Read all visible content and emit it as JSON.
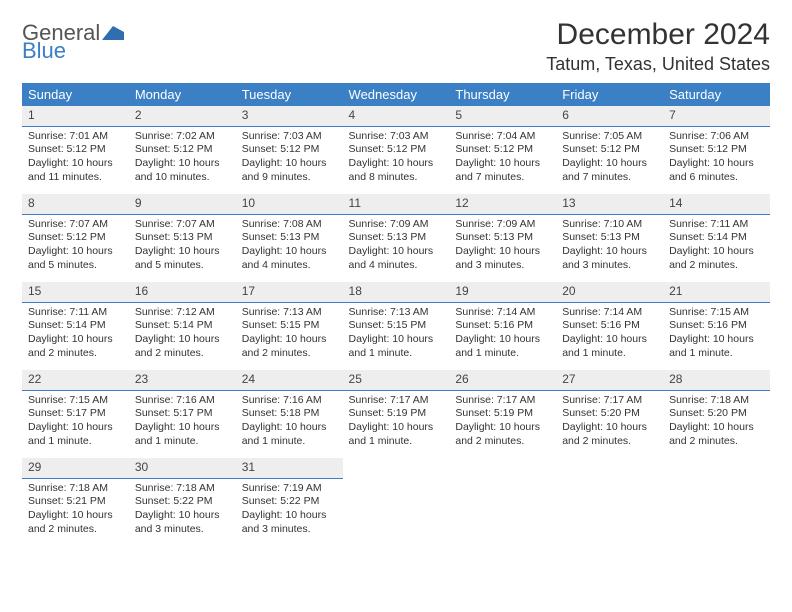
{
  "logo": {
    "text_general": "General",
    "text_blue": "Blue"
  },
  "title": "December 2024",
  "location": "Tatum, Texas, United States",
  "accent_color": "#3b7fc4",
  "daynum_bg": "#eeeeee",
  "weekdays": [
    "Sunday",
    "Monday",
    "Tuesday",
    "Wednesday",
    "Thursday",
    "Friday",
    "Saturday"
  ],
  "weeks": [
    [
      {
        "n": "1",
        "sr": "Sunrise: 7:01 AM",
        "ss": "Sunset: 5:12 PM",
        "d1": "Daylight: 10 hours",
        "d2": "and 11 minutes."
      },
      {
        "n": "2",
        "sr": "Sunrise: 7:02 AM",
        "ss": "Sunset: 5:12 PM",
        "d1": "Daylight: 10 hours",
        "d2": "and 10 minutes."
      },
      {
        "n": "3",
        "sr": "Sunrise: 7:03 AM",
        "ss": "Sunset: 5:12 PM",
        "d1": "Daylight: 10 hours",
        "d2": "and 9 minutes."
      },
      {
        "n": "4",
        "sr": "Sunrise: 7:03 AM",
        "ss": "Sunset: 5:12 PM",
        "d1": "Daylight: 10 hours",
        "d2": "and 8 minutes."
      },
      {
        "n": "5",
        "sr": "Sunrise: 7:04 AM",
        "ss": "Sunset: 5:12 PM",
        "d1": "Daylight: 10 hours",
        "d2": "and 7 minutes."
      },
      {
        "n": "6",
        "sr": "Sunrise: 7:05 AM",
        "ss": "Sunset: 5:12 PM",
        "d1": "Daylight: 10 hours",
        "d2": "and 7 minutes."
      },
      {
        "n": "7",
        "sr": "Sunrise: 7:06 AM",
        "ss": "Sunset: 5:12 PM",
        "d1": "Daylight: 10 hours",
        "d2": "and 6 minutes."
      }
    ],
    [
      {
        "n": "8",
        "sr": "Sunrise: 7:07 AM",
        "ss": "Sunset: 5:12 PM",
        "d1": "Daylight: 10 hours",
        "d2": "and 5 minutes."
      },
      {
        "n": "9",
        "sr": "Sunrise: 7:07 AM",
        "ss": "Sunset: 5:13 PM",
        "d1": "Daylight: 10 hours",
        "d2": "and 5 minutes."
      },
      {
        "n": "10",
        "sr": "Sunrise: 7:08 AM",
        "ss": "Sunset: 5:13 PM",
        "d1": "Daylight: 10 hours",
        "d2": "and 4 minutes."
      },
      {
        "n": "11",
        "sr": "Sunrise: 7:09 AM",
        "ss": "Sunset: 5:13 PM",
        "d1": "Daylight: 10 hours",
        "d2": "and 4 minutes."
      },
      {
        "n": "12",
        "sr": "Sunrise: 7:09 AM",
        "ss": "Sunset: 5:13 PM",
        "d1": "Daylight: 10 hours",
        "d2": "and 3 minutes."
      },
      {
        "n": "13",
        "sr": "Sunrise: 7:10 AM",
        "ss": "Sunset: 5:13 PM",
        "d1": "Daylight: 10 hours",
        "d2": "and 3 minutes."
      },
      {
        "n": "14",
        "sr": "Sunrise: 7:11 AM",
        "ss": "Sunset: 5:14 PM",
        "d1": "Daylight: 10 hours",
        "d2": "and 2 minutes."
      }
    ],
    [
      {
        "n": "15",
        "sr": "Sunrise: 7:11 AM",
        "ss": "Sunset: 5:14 PM",
        "d1": "Daylight: 10 hours",
        "d2": "and 2 minutes."
      },
      {
        "n": "16",
        "sr": "Sunrise: 7:12 AM",
        "ss": "Sunset: 5:14 PM",
        "d1": "Daylight: 10 hours",
        "d2": "and 2 minutes."
      },
      {
        "n": "17",
        "sr": "Sunrise: 7:13 AM",
        "ss": "Sunset: 5:15 PM",
        "d1": "Daylight: 10 hours",
        "d2": "and 2 minutes."
      },
      {
        "n": "18",
        "sr": "Sunrise: 7:13 AM",
        "ss": "Sunset: 5:15 PM",
        "d1": "Daylight: 10 hours",
        "d2": "and 1 minute."
      },
      {
        "n": "19",
        "sr": "Sunrise: 7:14 AM",
        "ss": "Sunset: 5:16 PM",
        "d1": "Daylight: 10 hours",
        "d2": "and 1 minute."
      },
      {
        "n": "20",
        "sr": "Sunrise: 7:14 AM",
        "ss": "Sunset: 5:16 PM",
        "d1": "Daylight: 10 hours",
        "d2": "and 1 minute."
      },
      {
        "n": "21",
        "sr": "Sunrise: 7:15 AM",
        "ss": "Sunset: 5:16 PM",
        "d1": "Daylight: 10 hours",
        "d2": "and 1 minute."
      }
    ],
    [
      {
        "n": "22",
        "sr": "Sunrise: 7:15 AM",
        "ss": "Sunset: 5:17 PM",
        "d1": "Daylight: 10 hours",
        "d2": "and 1 minute."
      },
      {
        "n": "23",
        "sr": "Sunrise: 7:16 AM",
        "ss": "Sunset: 5:17 PM",
        "d1": "Daylight: 10 hours",
        "d2": "and 1 minute."
      },
      {
        "n": "24",
        "sr": "Sunrise: 7:16 AM",
        "ss": "Sunset: 5:18 PM",
        "d1": "Daylight: 10 hours",
        "d2": "and 1 minute."
      },
      {
        "n": "25",
        "sr": "Sunrise: 7:17 AM",
        "ss": "Sunset: 5:19 PM",
        "d1": "Daylight: 10 hours",
        "d2": "and 1 minute."
      },
      {
        "n": "26",
        "sr": "Sunrise: 7:17 AM",
        "ss": "Sunset: 5:19 PM",
        "d1": "Daylight: 10 hours",
        "d2": "and 2 minutes."
      },
      {
        "n": "27",
        "sr": "Sunrise: 7:17 AM",
        "ss": "Sunset: 5:20 PM",
        "d1": "Daylight: 10 hours",
        "d2": "and 2 minutes."
      },
      {
        "n": "28",
        "sr": "Sunrise: 7:18 AM",
        "ss": "Sunset: 5:20 PM",
        "d1": "Daylight: 10 hours",
        "d2": "and 2 minutes."
      }
    ],
    [
      {
        "n": "29",
        "sr": "Sunrise: 7:18 AM",
        "ss": "Sunset: 5:21 PM",
        "d1": "Daylight: 10 hours",
        "d2": "and 2 minutes."
      },
      {
        "n": "30",
        "sr": "Sunrise: 7:18 AM",
        "ss": "Sunset: 5:22 PM",
        "d1": "Daylight: 10 hours",
        "d2": "and 3 minutes."
      },
      {
        "n": "31",
        "sr": "Sunrise: 7:19 AM",
        "ss": "Sunset: 5:22 PM",
        "d1": "Daylight: 10 hours",
        "d2": "and 3 minutes."
      },
      null,
      null,
      null,
      null
    ]
  ]
}
